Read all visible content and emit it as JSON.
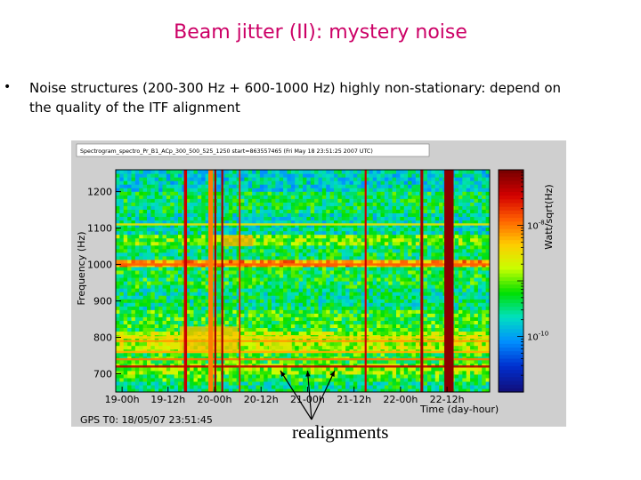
{
  "slide": {
    "title": "Beam jitter (II): mystery noise",
    "bullet_marker": "•",
    "bullet_text": "Noise structures (200-300 Hz + 600-1000 Hz) highly non-stationary: depend on the quality of the ITF alignment",
    "annotation": "realignments"
  },
  "chart_data": {
    "type": "heatmap",
    "title": "Spectrogram_spectro_Pr_B1_ACp_300_500_525_1250 start=863557465 (Fri May 18 23:51:25 2007 UTC)",
    "xlabel": "Time (day-hour)",
    "ylabel": "Frequency (Hz)",
    "zlabel": "Watt/sqrt(Hz)",
    "gps_label": "GPS T0: 18/05/07 23:51:45",
    "x_tick_labels": [
      "19-00h",
      "19-12h",
      "20-00h",
      "20-12h",
      "21-00h",
      "21-12h",
      "22-00h",
      "22-12h"
    ],
    "x_tick_positions_hours": [
      0.14,
      12,
      24,
      36,
      48,
      60,
      72,
      84
    ],
    "xlim_hours": [
      -1.5,
      95
    ],
    "y_ticks": [
      700,
      800,
      900,
      1000,
      1100,
      1200
    ],
    "ylim": [
      650,
      1260
    ],
    "color_scale": {
      "log": true,
      "ticks": [
        {
          "exp": "-8",
          "value": 1e-08
        },
        {
          "exp": "-10",
          "value": 1e-10
        }
      ]
    },
    "colorbar_colors": [
      "#7a0000",
      "#d40000",
      "#ff6000",
      "#ffcc00",
      "#c8ff00",
      "#00e000",
      "#00e0c0",
      "#0090ff",
      "#0030d0",
      "#101080"
    ],
    "background_levels": [
      {
        "f_from": 650,
        "f_to": 680,
        "level": 0.38
      },
      {
        "f_from": 680,
        "f_to": 700,
        "level": 0.45
      },
      {
        "f_from": 700,
        "f_to": 730,
        "level": 0.52
      },
      {
        "f_from": 730,
        "f_to": 760,
        "level": 0.45
      },
      {
        "f_from": 760,
        "f_to": 820,
        "level": 0.55
      },
      {
        "f_from": 820,
        "f_to": 880,
        "level": 0.45
      },
      {
        "f_from": 880,
        "f_to": 940,
        "level": 0.38
      },
      {
        "f_from": 940,
        "f_to": 990,
        "level": 0.42
      },
      {
        "f_from": 990,
        "f_to": 1010,
        "level": 0.72
      },
      {
        "f_from": 1010,
        "f_to": 1050,
        "level": 0.4
      },
      {
        "f_from": 1050,
        "f_to": 1080,
        "level": 0.5
      },
      {
        "f_from": 1080,
        "f_to": 1140,
        "level": 0.35
      },
      {
        "f_from": 1140,
        "f_to": 1200,
        "level": 0.4
      },
      {
        "f_from": 1200,
        "f_to": 1260,
        "level": 0.32
      }
    ],
    "spectral_lines": [
      {
        "freq": 720,
        "level": 0.92
      },
      {
        "freq": 740,
        "level": 0.75
      },
      {
        "freq": 760,
        "level": 0.7
      },
      {
        "freq": 790,
        "level": 0.72
      },
      {
        "freq": 800,
        "level": 0.65
      },
      {
        "freq": 1000,
        "level": 0.78
      },
      {
        "freq": 1110,
        "level": 0.62
      }
    ],
    "loud_bursts": [
      {
        "t_from": 15,
        "t_to": 30,
        "f_from": 760,
        "f_to": 830,
        "level": 0.68
      },
      {
        "t_from": 26,
        "t_to": 34,
        "f_from": 1050,
        "f_to": 1080,
        "level": 0.7
      },
      {
        "t_from": 38,
        "t_to": 44,
        "f_from": 760,
        "f_to": 800,
        "level": 0.62
      }
    ],
    "broadband_lines": [
      {
        "t": 16.5,
        "width_h": 0.8,
        "level": 0.9
      },
      {
        "t": 23.0,
        "width_h": 1.2,
        "level": 0.75
      },
      {
        "t": 24.2,
        "width_h": 0.5,
        "level": 0.95
      },
      {
        "t": 26.0,
        "width_h": 0.5,
        "level": 0.95
      },
      {
        "t": 30.5,
        "width_h": 0.4,
        "level": 0.85
      },
      {
        "t": 63.0,
        "width_h": 0.5,
        "level": 0.9
      },
      {
        "t": 77.5,
        "width_h": 0.7,
        "level": 0.95
      },
      {
        "t": 84.5,
        "width_h": 2.4,
        "level": 0.98
      }
    ],
    "annotation_arrow_targets_hours": [
      41,
      48,
      55
    ]
  }
}
